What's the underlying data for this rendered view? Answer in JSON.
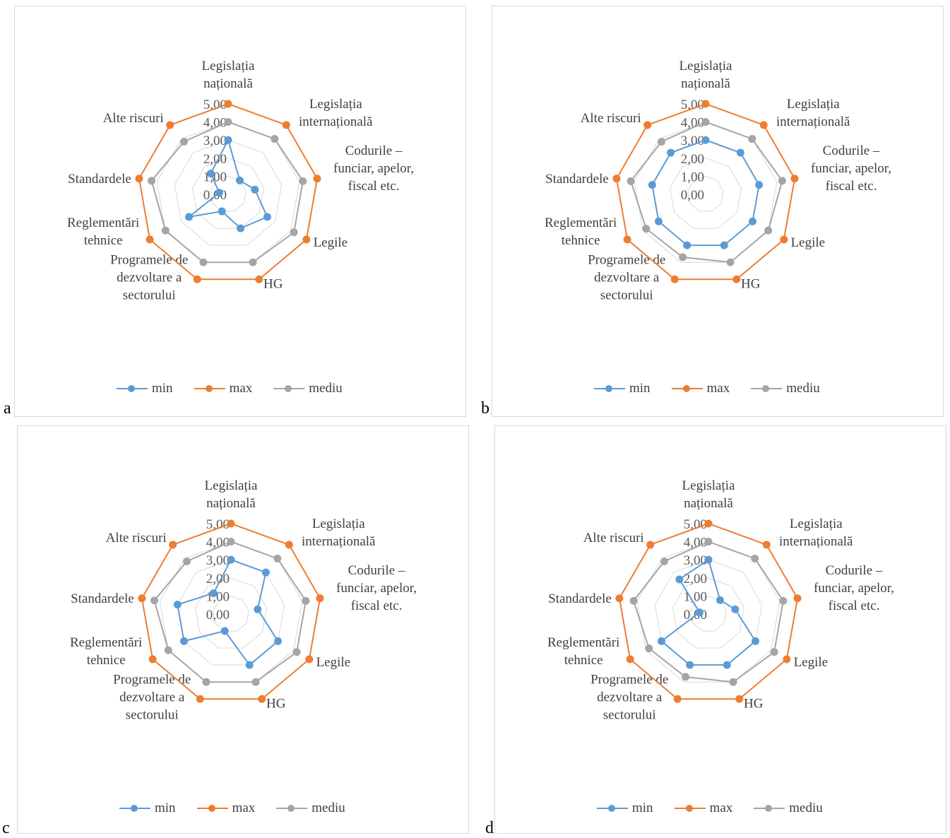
{
  "categories": [
    [
      "Legislația",
      "națională"
    ],
    [
      "Legislația",
      "internațională"
    ],
    [
      "Codurile –",
      "funciar, apelor,",
      "fiscal etc."
    ],
    [
      "Legile"
    ],
    [
      "HG"
    ],
    [
      "Programele de",
      "dezvoltare a",
      "sectorului"
    ],
    [
      "Reglementări",
      "tehnice"
    ],
    [
      "Standardele"
    ],
    [
      "Alte riscuri"
    ]
  ],
  "ticks": [
    "0,00",
    "1,00",
    "2,00",
    "3,00",
    "4,00",
    "5,00"
  ],
  "legend": {
    "min": "min",
    "max": "max",
    "mediu": "mediu"
  },
  "colors": {
    "min": "#5b9bd5",
    "max": "#ed7d31",
    "mediu": "#a5a5a5",
    "grid": "#d9d9d9"
  },
  "chart_data": [
    {
      "type": "radar",
      "panel_letter": "a",
      "rlim": [
        0,
        5
      ],
      "legend_position": "bottom",
      "series": [
        {
          "name": "min",
          "values": [
            3,
            1,
            1.5,
            2.5,
            2,
            1,
            2.5,
            0.5,
            1.5
          ]
        },
        {
          "name": "max",
          "values": [
            5,
            5,
            5,
            5,
            5,
            5,
            5,
            5,
            5
          ]
        },
        {
          "name": "mediu",
          "values": [
            4,
            4,
            4.2,
            4.2,
            4,
            4,
            4,
            4.3,
            3.8
          ]
        }
      ]
    },
    {
      "type": "radar",
      "panel_letter": "b",
      "rlim": [
        0,
        5
      ],
      "legend_position": "bottom",
      "series": [
        {
          "name": "min",
          "values": [
            3,
            3,
            3,
            3,
            3,
            3,
            3,
            3,
            3
          ]
        },
        {
          "name": "max",
          "values": [
            5,
            5,
            5,
            5,
            5,
            5,
            5,
            5,
            5
          ]
        },
        {
          "name": "mediu",
          "values": [
            4,
            4,
            4.3,
            4,
            4,
            3.7,
            3.8,
            4.2,
            3.8
          ]
        }
      ]
    },
    {
      "type": "radar",
      "panel_letter": "c",
      "rlim": [
        0,
        5
      ],
      "legend_position": "bottom",
      "series": [
        {
          "name": "min",
          "values": [
            3,
            3,
            1.5,
            3,
            3,
            1,
            3,
            3,
            1.5
          ]
        },
        {
          "name": "max",
          "values": [
            5,
            5,
            5,
            5,
            5,
            5,
            5,
            5,
            5
          ]
        },
        {
          "name": "mediu",
          "values": [
            4,
            4,
            4.2,
            4.2,
            4,
            4,
            4,
            4.3,
            3.8
          ]
        }
      ]
    },
    {
      "type": "radar",
      "panel_letter": "d",
      "rlim": [
        0,
        5
      ],
      "legend_position": "bottom",
      "series": [
        {
          "name": "min",
          "values": [
            3,
            1,
            1.5,
            3,
            3,
            3,
            3,
            0.5,
            2.5
          ]
        },
        {
          "name": "max",
          "values": [
            5,
            5,
            5,
            5,
            5,
            5,
            5,
            5,
            5
          ]
        },
        {
          "name": "mediu",
          "values": [
            4,
            4,
            4.2,
            4.2,
            4,
            3.7,
            3.8,
            4.2,
            3.8
          ]
        }
      ]
    }
  ]
}
